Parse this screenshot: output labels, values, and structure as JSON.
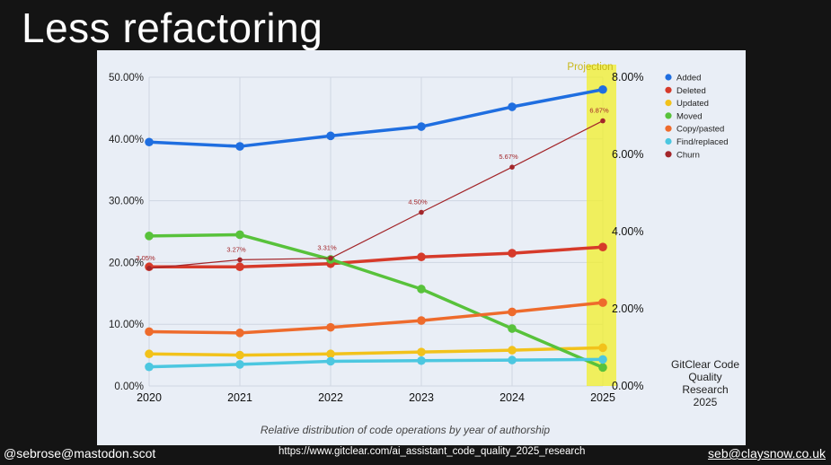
{
  "slide": {
    "title": "Less refactoring",
    "footer_left": "@sebrose@mastodon.scot",
    "footer_center": "https://www.gitclear.com/ai_assistant_code_quality_2025_research",
    "footer_right": "seb@claysnow.co.uk"
  },
  "chart_data": {
    "type": "line",
    "caption": "Relative distribution of code operations by year of authorship",
    "source_note": [
      "GitClear Code",
      "Quality",
      "Research",
      "2025"
    ],
    "highlight_label": "Projection",
    "highlight_x": 2025,
    "x": [
      2020,
      2021,
      2022,
      2023,
      2024,
      2025
    ],
    "x_tick_labels": [
      "2020",
      "2021",
      "2022",
      "2023",
      "2024",
      "2025"
    ],
    "y_left": {
      "min": 0,
      "max": 50,
      "tick_labels": [
        "0.00%",
        "10.00%",
        "20.00%",
        "30.00%",
        "40.00%",
        "50.00%"
      ]
    },
    "y_right": {
      "min": 0,
      "max": 8,
      "tick_labels": [
        "0.00%",
        "2.00%",
        "4.00%",
        "6.00%",
        "8.00%"
      ]
    },
    "legend_position": "right",
    "grid": true,
    "series": [
      {
        "name": "Added",
        "color": "#1f6ee0",
        "axis": "left",
        "values": [
          39.5,
          38.8,
          40.5,
          42.0,
          45.2,
          48.0
        ]
      },
      {
        "name": "Deleted",
        "color": "#d63a2a",
        "axis": "left",
        "values": [
          19.3,
          19.3,
          19.8,
          20.9,
          21.5,
          22.5
        ]
      },
      {
        "name": "Updated",
        "color": "#f2c21b",
        "axis": "left",
        "values": [
          5.2,
          5.0,
          5.2,
          5.5,
          5.8,
          6.2
        ]
      },
      {
        "name": "Moved",
        "color": "#58c23b",
        "axis": "left",
        "values": [
          24.3,
          24.5,
          20.5,
          15.7,
          9.3,
          3.0
        ]
      },
      {
        "name": "Copy/pasted",
        "color": "#ee6b2c",
        "axis": "left",
        "values": [
          8.8,
          8.6,
          9.5,
          10.6,
          12.0,
          13.5
        ]
      },
      {
        "name": "Find/replaced",
        "color": "#4cc7e0",
        "axis": "left",
        "values": [
          3.1,
          3.5,
          4.0,
          4.1,
          4.2,
          4.3
        ]
      },
      {
        "name": "Churn",
        "color": "#a3262a",
        "axis": "right",
        "values": [
          3.05,
          3.27,
          3.31,
          4.5,
          5.67,
          6.87
        ],
        "labels": [
          "3.05%",
          "3.27%",
          "3.31%",
          "4.50%",
          "5.67%",
          "6.87%"
        ]
      }
    ]
  }
}
